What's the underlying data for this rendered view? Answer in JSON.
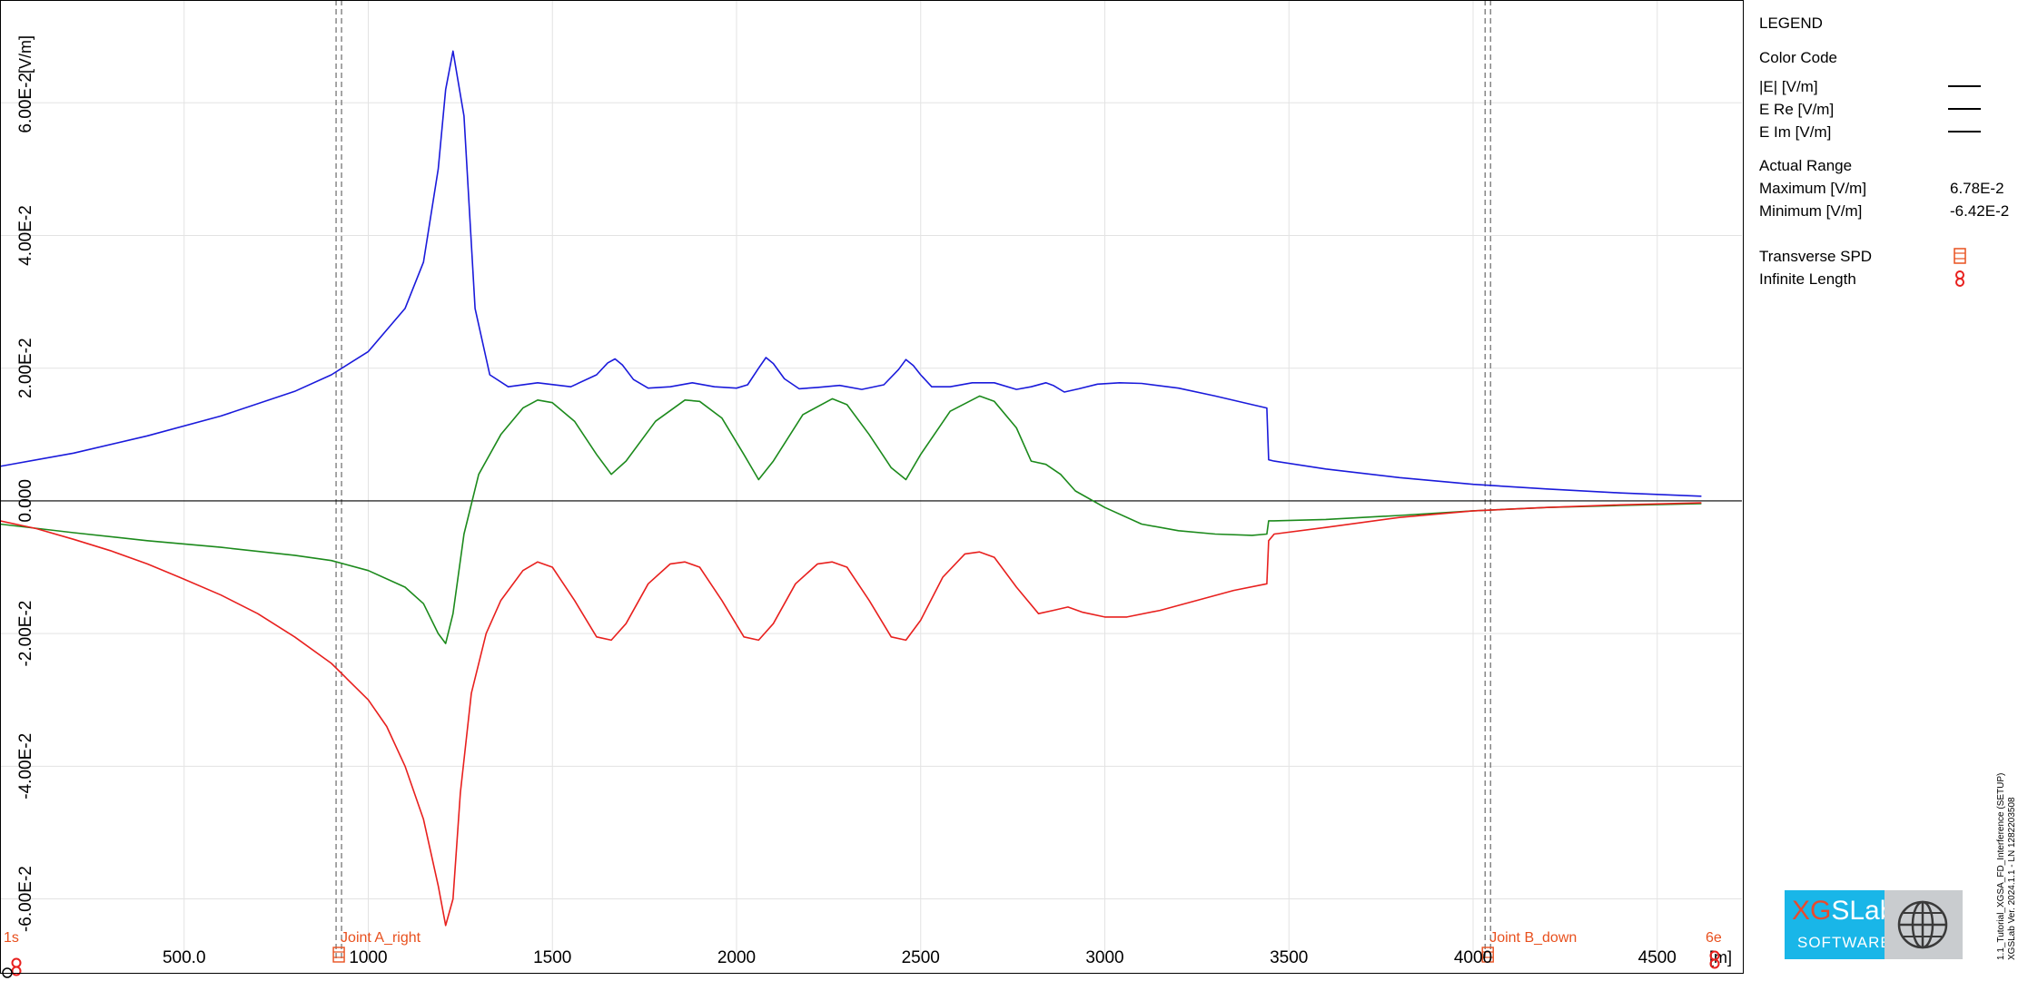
{
  "chart_data": {
    "type": "line",
    "xlabel": "[m]",
    "ylabel": "[V/m]",
    "xlim": [
      0,
      4730
    ],
    "ylim": [
      -0.0695,
      0.0755
    ],
    "x_ticks": [
      {
        "value": 500,
        "label": "500.0"
      },
      {
        "value": 1000,
        "label": "1000"
      },
      {
        "value": 1500,
        "label": "1500"
      },
      {
        "value": 2000,
        "label": "2000"
      },
      {
        "value": 2500,
        "label": "2500"
      },
      {
        "value": 3000,
        "label": "3000"
      },
      {
        "value": 3500,
        "label": "3500"
      },
      {
        "value": 4000,
        "label": "4000"
      },
      {
        "value": 4500,
        "label": "4500"
      }
    ],
    "y_ticks": [
      {
        "value": 0.06,
        "label": "6.00E-2"
      },
      {
        "value": 0.04,
        "label": "4.00E-2"
      },
      {
        "value": 0.02,
        "label": "2.00E-2"
      },
      {
        "value": 0,
        "label": "0.000"
      },
      {
        "value": -0.02,
        "label": "-2.00E-2"
      },
      {
        "value": -0.04,
        "label": "-4.00E-2"
      },
      {
        "value": -0.06,
        "label": "-6.00E-2"
      }
    ],
    "grid": true,
    "series": [
      {
        "name": "|E| [V/m]",
        "color": "#1a1adb",
        "x": [
          0,
          200,
          400,
          600,
          800,
          900,
          1000,
          1100,
          1150,
          1190,
          1210,
          1230,
          1260,
          1290,
          1330,
          1380,
          1460,
          1550,
          1620,
          1650,
          1670,
          1690,
          1720,
          1760,
          1820,
          1880,
          1940,
          2000,
          2030,
          2060,
          2080,
          2100,
          2130,
          2170,
          2220,
          2280,
          2340,
          2400,
          2440,
          2460,
          2480,
          2500,
          2530,
          2580,
          2640,
          2700,
          2760,
          2800,
          2840,
          2860,
          2890,
          2930,
          2980,
          3040,
          3100,
          3200,
          3300,
          3400,
          3440,
          3445,
          3460,
          3600,
          3800,
          4000,
          4200,
          4400,
          4620
        ],
        "y": [
          0.0052,
          0.0072,
          0.0098,
          0.0128,
          0.0165,
          0.019,
          0.0225,
          0.029,
          0.036,
          0.05,
          0.062,
          0.0678,
          0.058,
          0.029,
          0.019,
          0.0172,
          0.0178,
          0.0172,
          0.019,
          0.0208,
          0.0214,
          0.0205,
          0.0183,
          0.017,
          0.0172,
          0.0178,
          0.0172,
          0.017,
          0.0175,
          0.02,
          0.0216,
          0.0207,
          0.0184,
          0.0169,
          0.0171,
          0.0174,
          0.0168,
          0.0175,
          0.0198,
          0.0213,
          0.0204,
          0.019,
          0.0172,
          0.0172,
          0.0178,
          0.0178,
          0.0168,
          0.0172,
          0.0178,
          0.0174,
          0.0164,
          0.0169,
          0.0176,
          0.0178,
          0.0177,
          0.017,
          0.0158,
          0.0145,
          0.014,
          0.0062,
          0.006,
          0.0048,
          0.0035,
          0.0025,
          0.0018,
          0.0012,
          0.0007
        ]
      },
      {
        "name": "E Re [V/m]",
        "color": "#1c8a1c",
        "x": [
          0,
          200,
          400,
          600,
          800,
          900,
          1000,
          1100,
          1150,
          1190,
          1210,
          1230,
          1260,
          1300,
          1360,
          1420,
          1460,
          1500,
          1560,
          1620,
          1660,
          1700,
          1780,
          1860,
          1900,
          1960,
          2020,
          2060,
          2100,
          2180,
          2260,
          2300,
          2360,
          2420,
          2460,
          2500,
          2580,
          2660,
          2700,
          2760,
          2800,
          2840,
          2880,
          2920,
          3000,
          3100,
          3200,
          3300,
          3400,
          3440,
          3445,
          3460,
          3600,
          3800,
          4000,
          4200,
          4400,
          4620
        ],
        "y": [
          -0.0035,
          -0.0048,
          -0.006,
          -0.007,
          -0.0082,
          -0.009,
          -0.0105,
          -0.013,
          -0.0155,
          -0.02,
          -0.0215,
          -0.017,
          -0.005,
          0.004,
          0.01,
          0.014,
          0.0152,
          0.0148,
          0.012,
          0.007,
          0.004,
          0.006,
          0.012,
          0.0152,
          0.015,
          0.0125,
          0.007,
          0.0032,
          0.006,
          0.013,
          0.0154,
          0.0145,
          0.01,
          0.005,
          0.0032,
          0.007,
          0.0135,
          0.0158,
          0.015,
          0.011,
          0.006,
          0.0055,
          0.004,
          0.0015,
          -0.001,
          -0.0035,
          -0.0045,
          -0.005,
          -0.0052,
          -0.005,
          -0.003,
          -0.003,
          -0.0028,
          -0.0022,
          -0.0015,
          -0.001,
          -0.0007,
          -0.0004
        ]
      },
      {
        "name": "E Im [V/m]",
        "color": "#e8201e",
        "x": [
          0,
          100,
          200,
          300,
          400,
          500,
          600,
          700,
          800,
          900,
          1000,
          1050,
          1100,
          1150,
          1190,
          1210,
          1230,
          1250,
          1280,
          1320,
          1360,
          1420,
          1460,
          1500,
          1560,
          1620,
          1660,
          1700,
          1760,
          1820,
          1860,
          1900,
          1960,
          2020,
          2060,
          2100,
          2160,
          2220,
          2260,
          2300,
          2360,
          2420,
          2460,
          2500,
          2560,
          2620,
          2660,
          2700,
          2760,
          2820,
          2860,
          2900,
          2940,
          3000,
          3060,
          3150,
          3250,
          3350,
          3440,
          3445,
          3460,
          3600,
          3800,
          4000,
          4200,
          4400,
          4620
        ],
        "y": [
          -0.003,
          -0.0042,
          -0.0058,
          -0.0075,
          -0.0095,
          -0.0118,
          -0.0142,
          -0.017,
          -0.0205,
          -0.0245,
          -0.03,
          -0.034,
          -0.04,
          -0.048,
          -0.058,
          -0.064,
          -0.06,
          -0.044,
          -0.029,
          -0.02,
          -0.015,
          -0.0105,
          -0.0092,
          -0.01,
          -0.015,
          -0.0205,
          -0.021,
          -0.0185,
          -0.0125,
          -0.0095,
          -0.0092,
          -0.01,
          -0.015,
          -0.0205,
          -0.021,
          -0.0185,
          -0.0125,
          -0.0095,
          -0.0092,
          -0.01,
          -0.015,
          -0.0205,
          -0.021,
          -0.018,
          -0.0115,
          -0.008,
          -0.0077,
          -0.0085,
          -0.013,
          -0.017,
          -0.0165,
          -0.016,
          -0.0168,
          -0.0175,
          -0.0175,
          -0.0165,
          -0.015,
          -0.0135,
          -0.0125,
          -0.006,
          -0.005,
          -0.004,
          -0.0025,
          -0.0015,
          -0.001,
          -0.0006,
          -0.0003
        ]
      }
    ],
    "markers": [
      {
        "x": 920,
        "label": "Joint A_right"
      },
      {
        "x": 4040,
        "label": "Joint B_down"
      }
    ],
    "edge_labels": {
      "left": "1s",
      "right": "6e"
    }
  },
  "legend": {
    "title": "LEGEND",
    "color_code_title": "Color Code",
    "series_labels": [
      "|E| [V/m]",
      "E Re [V/m]",
      "E Im [V/m]"
    ],
    "series_colors": [
      "#1a1adb",
      "#1c8a1c",
      "#e8201e"
    ],
    "actual_range_title": "Actual Range",
    "maximum_label": "Maximum [V/m]",
    "maximum_value": "6.78E-2",
    "minimum_label": "Minimum [V/m]",
    "minimum_value": "-6.42E-2",
    "transverse_label": "Transverse SPD",
    "infinite_label": "Infinite Length"
  },
  "logo": {
    "brand_xg": "XG",
    "brand_rest": "SLab",
    "software": "SOFTWARE"
  },
  "version_info": {
    "line1": "1.1_Tutorial_XGSA_FD_Interference  (SETUP)",
    "line2": "XGSLab Ver. 2024.1.1 - LN 1282203508"
  }
}
